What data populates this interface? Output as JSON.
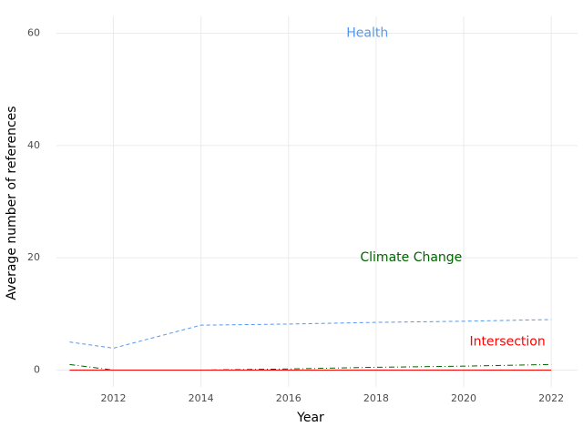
{
  "chart_data": {
    "type": "line",
    "xlabel": "Year",
    "ylabel": "Average number of references",
    "x": [
      2011,
      2012,
      2014,
      2016,
      2018,
      2020,
      2022
    ],
    "series": [
      {
        "name": "Health",
        "color": "#5599ee",
        "linestyle": "dashed",
        "values": [
          5,
          3.9,
          8,
          8.2,
          8.5,
          8.7,
          9
        ]
      },
      {
        "name": "Climate Change",
        "color": "#006400",
        "linestyle": "dashdot",
        "values": [
          1,
          0,
          0,
          0.2,
          0.5,
          0.7,
          1
        ]
      },
      {
        "name": "Intersection",
        "color": "#ff0000",
        "linestyle": "solid",
        "values": [
          0,
          0,
          0,
          0,
          0,
          0,
          0
        ]
      }
    ],
    "annotations": [
      {
        "text": "Health",
        "x": 2017.8,
        "y": 60,
        "color": "#5599ee"
      },
      {
        "text": "Climate Change",
        "x": 2018.8,
        "y": 20,
        "color": "#006400"
      },
      {
        "text": "Intersection",
        "x": 2021.0,
        "y": 5,
        "color": "#ff0000"
      }
    ],
    "xlim": [
      2010.7,
      2022.6
    ],
    "ylim": [
      -3,
      63
    ],
    "xticks": [
      2012,
      2014,
      2016,
      2018,
      2020,
      2022
    ],
    "yticks": [
      0,
      20,
      40,
      60
    ],
    "grid": true
  }
}
